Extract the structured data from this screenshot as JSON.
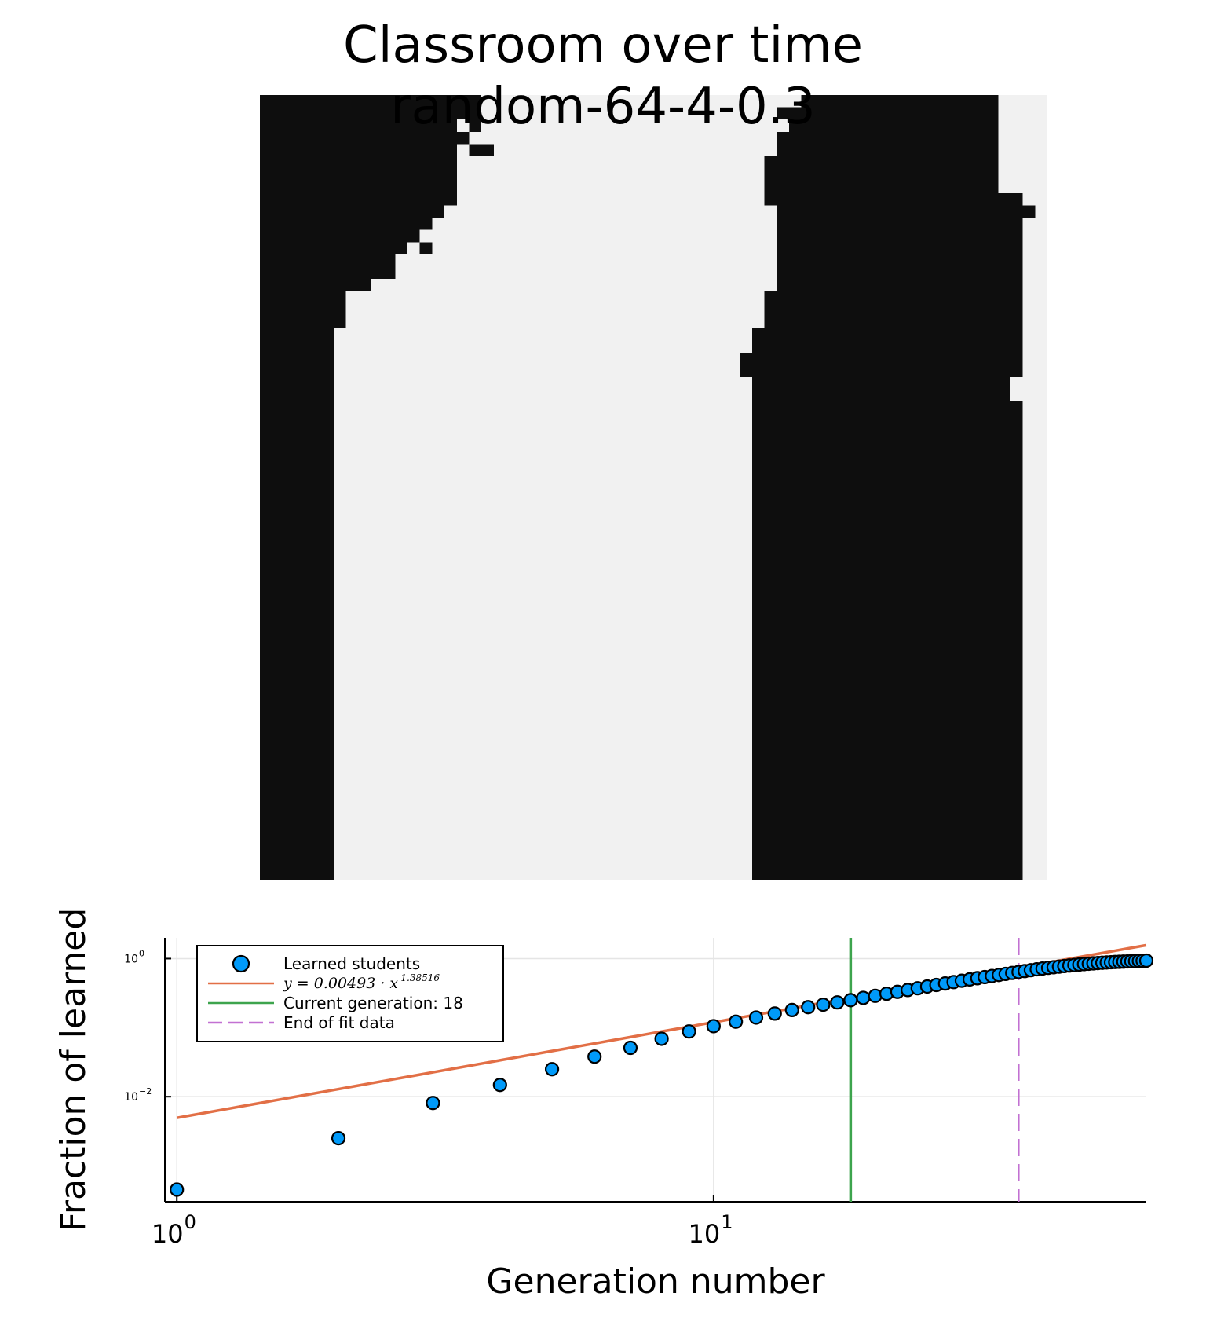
{
  "title": {
    "line1": "Classroom over time",
    "line2": "random-64-4-0.3"
  },
  "grid": {
    "size": 64,
    "filled_color": "#0e0e0e",
    "empty_color": "#f1f1f1",
    "rows": [
      "##################..........................################",
      "##################........................##################",
      "################.#.........................#################",
      "#################.........................##################",
      "################.##.......................##################",
      "################.........................###################",
      "################.........................###################",
      "################.........................###################",
      "################.........................#####################",
      "###############...........................#####################",
      "##############............................####################",
      "#############.............................####################",
      "############.#............................####################",
      "###########...............................####################",
      "###########...............................####################",
      "#########.................................####################",
      "#######..................................#####################",
      "#######..................................#####################",
      "#######..................................#####################",
      "######..................................######################",
      "######..................................######################",
      "######.................................#######################",
      "######.................................#######################",
      "######..................................#####################",
      "######..................................#####################",
      "######..................................######################",
      "######..................................######################",
      "######..................................######################",
      "######..................................######################",
      "######..................................######################",
      "######..................................######################",
      "######..................................######################",
      "######..................................######################",
      "######..................................######################",
      "######..................................######################",
      "######..................................######################",
      "######..................................######################",
      "######..................................######################",
      "######..................................######################",
      "######..................................######################",
      "######..................................######################",
      "######..................................######################",
      "######..................................######################",
      "######..................................######################",
      "######..................................######################",
      "######..................................######################",
      "######..................................######################",
      "######..................................######################",
      "######..................................######################",
      "######..................................######################",
      "######..................................######################",
      "######..................................######################",
      "######..................................######################",
      "######..................................######################",
      "######..................................######################",
      "######..................................######################",
      "######..................................######################",
      "######..................................######################",
      "######..................................######################",
      "######..................................######################",
      "######..................................######################",
      "######..................................######################",
      "######..................................######################",
      "######..................................######################"
    ]
  },
  "colors": {
    "scatter": "#009af9",
    "fit": "#e26f46",
    "current": "#3da44d",
    "end_fit": "#c271d2",
    "grid_line": "#e5e5e5"
  },
  "chart_data": {
    "type": "scatter",
    "xlabel": "Generation number",
    "ylabel": "Fraction of learned",
    "xscale": "log10",
    "yscale": "log10",
    "xlim": [
      0.95,
      64
    ],
    "ylim": [
      0.0003,
      2.0
    ],
    "xticks": [
      {
        "base": "10",
        "exp": "0",
        "value": 1
      },
      {
        "base": "10",
        "exp": "1",
        "value": 10
      }
    ],
    "yticks": [
      {
        "base": "10",
        "exp": "0",
        "value": 1
      },
      {
        "base": "10",
        "exp": "−2",
        "value": 0.01
      }
    ],
    "grid": true,
    "legend_position": "top-left",
    "series": [
      {
        "name": "Learned students",
        "kind": "scatter",
        "x": [
          1,
          2,
          3,
          4,
          5,
          6,
          7,
          8,
          9,
          10,
          11,
          12,
          13,
          14,
          15,
          16,
          17,
          18,
          19,
          20,
          21,
          22,
          23,
          24,
          25,
          26,
          27,
          28,
          29,
          30,
          31,
          32,
          33,
          34,
          35,
          36,
          37,
          38,
          39,
          40,
          41,
          42,
          43,
          44,
          45,
          46,
          47,
          48,
          49,
          50,
          51,
          52,
          53,
          54,
          55,
          56,
          57,
          58,
          59,
          60,
          61,
          62,
          63,
          64
        ],
        "y": [
          0.00045,
          0.0025,
          0.0081,
          0.0148,
          0.025,
          0.038,
          0.051,
          0.069,
          0.088,
          0.105,
          0.122,
          0.14,
          0.16,
          0.18,
          0.198,
          0.215,
          0.232,
          0.25,
          0.27,
          0.289,
          0.31,
          0.33,
          0.351,
          0.372,
          0.394,
          0.415,
          0.436,
          0.457,
          0.478,
          0.5,
          0.52,
          0.54,
          0.56,
          0.58,
          0.6,
          0.62,
          0.64,
          0.66,
          0.68,
          0.7,
          0.718,
          0.735,
          0.75,
          0.765,
          0.78,
          0.794,
          0.808,
          0.82,
          0.832,
          0.843,
          0.853,
          0.862,
          0.871,
          0.879,
          0.886,
          0.893,
          0.899,
          0.905,
          0.91,
          0.915,
          0.92,
          0.925,
          0.93,
          0.935
        ]
      },
      {
        "name": "y = 0.00493 · x^1.38516",
        "label_main": "y = 0.00493 · x",
        "label_exp": "1.38516",
        "kind": "line",
        "coef": 0.00493,
        "power": 1.38516,
        "x_range": [
          1,
          64
        ]
      },
      {
        "name": "Current generation: 18",
        "kind": "vline",
        "x": 18
      },
      {
        "name": "End of fit data",
        "kind": "vline-dashed",
        "x": 37
      }
    ]
  }
}
